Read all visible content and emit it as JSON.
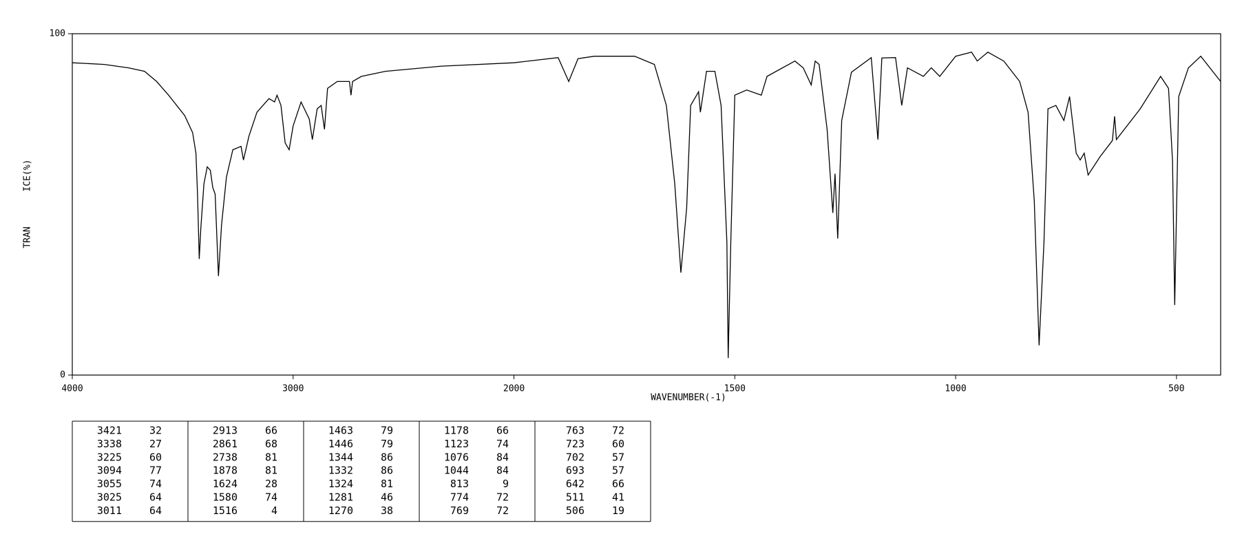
{
  "chart_data": {
    "type": "line",
    "x_label": "WAVENUMBER(-1)",
    "y_label_parts": [
      "TRAN",
      "ICE(%)"
    ],
    "xlim": [
      4000,
      400
    ],
    "xticks": [
      4000,
      3000,
      2000,
      1500,
      1000,
      500
    ],
    "x_scale_change": {
      "at": 2000,
      "ratio": 2
    },
    "ylim": [
      0,
      100
    ],
    "yticks": [
      0,
      100
    ],
    "color": "#000000",
    "x": [
      4000,
      3855,
      3745,
      3673,
      3618,
      3564,
      3491,
      3455,
      3440,
      3433,
      3425,
      3418,
      3404,
      3389,
      3375,
      3364,
      3353,
      3338,
      3324,
      3302,
      3273,
      3236,
      3225,
      3200,
      3164,
      3109,
      3084,
      3073,
      3055,
      3036,
      3018,
      3000,
      2964,
      2927,
      2913,
      2891,
      2873,
      2858,
      2844,
      2800,
      2745,
      2738,
      2731,
      2691,
      2582,
      2327,
      2000,
      1900,
      1876,
      1855,
      1818,
      1727,
      1682,
      1655,
      1636,
      1622,
      1609,
      1600,
      1582,
      1578,
      1564,
      1545,
      1531,
      1518,
      1515,
      1509,
      1500,
      1473,
      1440,
      1427,
      1364,
      1345,
      1327,
      1318,
      1309,
      1291,
      1278,
      1273,
      1267,
      1258,
      1236,
      1191,
      1176,
      1167,
      1136,
      1122,
      1109,
      1073,
      1055,
      1036,
      1000,
      964,
      951,
      927,
      891,
      855,
      836,
      822,
      811,
      800,
      791,
      773,
      755,
      742,
      727,
      718,
      709,
      700,
      673,
      645,
      640,
      636,
      582,
      536,
      518,
      509,
      504,
      495,
      473,
      445,
      400
    ],
    "y": [
      91.5,
      91,
      90,
      89,
      86,
      82,
      76,
      71,
      65,
      53,
      34,
      43,
      56,
      61,
      60,
      55,
      53,
      29,
      44,
      58,
      66,
      67,
      63,
      70,
      77,
      81,
      80,
      82,
      79,
      68,
      66,
      73,
      80,
      75,
      69,
      78,
      79,
      72,
      84,
      86,
      86,
      82,
      86,
      87.5,
      89,
      90.5,
      91.5,
      93,
      86,
      92.7,
      93.4,
      93.4,
      91,
      79,
      56,
      30,
      49,
      79,
      83,
      77,
      89,
      89,
      79,
      39,
      5,
      39,
      82,
      83.5,
      82,
      87.5,
      92,
      90,
      85,
      92,
      91,
      72,
      47.5,
      59,
      40,
      74.6,
      88.7,
      93,
      69,
      92.9,
      93,
      79,
      90,
      87.5,
      90,
      87.5,
      93.4,
      94.6,
      92,
      94.6,
      92,
      86,
      77,
      51,
      8.7,
      39,
      78,
      79,
      74.6,
      81.6,
      65,
      63,
      65,
      58.6,
      64,
      68.7,
      75.8,
      69,
      78,
      87.5,
      84,
      62.8,
      20.5,
      81.6,
      90,
      93.4,
      86
    ]
  },
  "peak_table": [
    [
      [
        3421,
        32
      ],
      [
        3338,
        27
      ],
      [
        3225,
        60
      ],
      [
        3094,
        77
      ],
      [
        3055,
        74
      ],
      [
        3025,
        64
      ],
      [
        3011,
        64
      ]
    ],
    [
      [
        2913,
        66
      ],
      [
        2861,
        68
      ],
      [
        2738,
        81
      ],
      [
        1878,
        81
      ],
      [
        1624,
        28
      ],
      [
        1580,
        74
      ],
      [
        1516,
        4
      ]
    ],
    [
      [
        1463,
        79
      ],
      [
        1446,
        79
      ],
      [
        1344,
        86
      ],
      [
        1332,
        86
      ],
      [
        1324,
        81
      ],
      [
        1281,
        46
      ],
      [
        1270,
        38
      ]
    ],
    [
      [
        1178,
        66
      ],
      [
        1123,
        74
      ],
      [
        1076,
        84
      ],
      [
        1044,
        84
      ],
      [
        813,
        9
      ],
      [
        774,
        72
      ],
      [
        769,
        72
      ]
    ],
    [
      [
        763,
        72
      ],
      [
        723,
        60
      ],
      [
        702,
        57
      ],
      [
        693,
        57
      ],
      [
        642,
        66
      ],
      [
        511,
        41
      ],
      [
        506,
        19
      ]
    ]
  ]
}
